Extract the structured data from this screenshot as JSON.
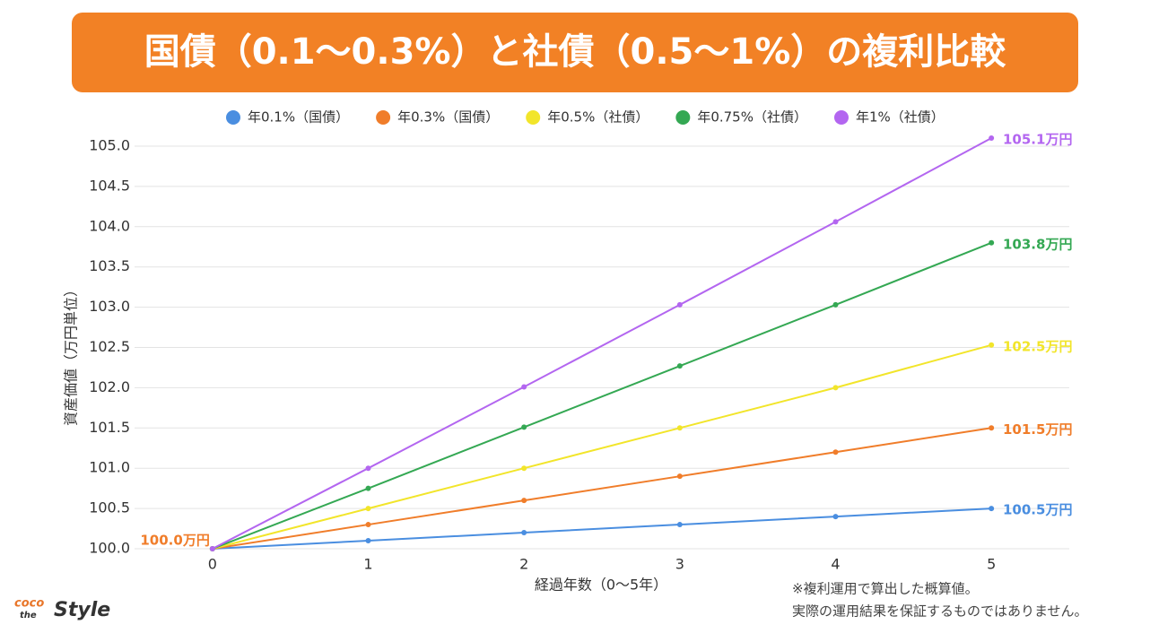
{
  "chart_data": {
    "type": "line",
    "title": "国債（0.1〜0.3%）と社債（0.5〜1%）の複利比較",
    "x": [
      0,
      1,
      2,
      3,
      4,
      5
    ],
    "xlim": [
      -0.5,
      5.5
    ],
    "xticks": [
      0,
      1,
      2,
      3,
      4,
      5
    ],
    "ylim": [
      100,
      105
    ],
    "yticks": [
      {
        "value": 100,
        "label": "100.0"
      },
      100.5,
      {
        "value": 101,
        "label": "101.0"
      },
      101.5,
      {
        "value": 102,
        "label": "102.0"
      },
      102.5,
      {
        "value": 103,
        "label": "103.0"
      },
      103.5,
      {
        "value": 104,
        "label": "104.0"
      },
      104.5,
      {
        "value": 105,
        "label": "105.0"
      }
    ],
    "grid": true,
    "xlabel": "経過年数（0〜5年）",
    "ylabel": "資産価値（万円単位）",
    "series": [
      {
        "name": "年0.1%（国債）",
        "color": "#4a8ee0",
        "values": [
          100,
          100.1,
          100.2,
          100.3,
          100.4,
          100.5
        ],
        "value_labels": [
          null,
          null,
          null,
          null,
          null,
          "100.5万円"
        ]
      },
      {
        "name": "年0.3%（国債）",
        "color": "#f07d2a",
        "values": [
          100,
          100.3,
          100.6,
          100.9,
          101.2,
          101.5
        ],
        "value_labels": [
          "100.0万円",
          null,
          null,
          null,
          null,
          "101.5万円"
        ]
      },
      {
        "name": "年0.5%（社債）",
        "color": "#f2e52a",
        "values": [
          100,
          100.5,
          101.0,
          101.5,
          102.0,
          102.53
        ],
        "value_labels": [
          null,
          null,
          null,
          null,
          null,
          "102.5万円"
        ]
      },
      {
        "name": "年0.75%（社債）",
        "color": "#34a853",
        "values": [
          100,
          100.75,
          101.51,
          102.27,
          103.03,
          103.8
        ],
        "value_labels": [
          null,
          null,
          null,
          null,
          null,
          "103.8万円"
        ]
      },
      {
        "name": "年1%（社債）",
        "color": "#b366f0",
        "values": [
          100,
          101,
          102.01,
          103.03,
          104.06,
          105.1
        ],
        "value_labels": [
          null,
          null,
          null,
          null,
          null,
          "105.1万円"
        ]
      }
    ],
    "notes": [
      "※複利運用で算出した概算値。",
      "実際の運用結果を保証するものではありません。"
    ],
    "logo": {
      "top": "coco",
      "middle": "the",
      "main": "Style"
    }
  }
}
